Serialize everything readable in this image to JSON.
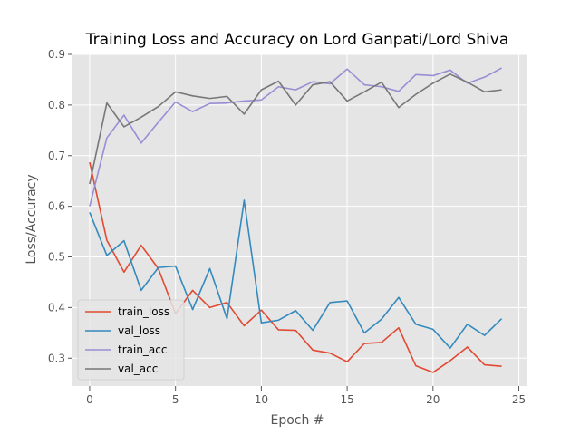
{
  "chart_data": {
    "type": "line",
    "title": "Training Loss and Accuracy on Lord Ganpati/Lord Shiva",
    "xlabel": "Epoch #",
    "ylabel": "Loss/Accuracy",
    "xlim": [
      -1,
      25.5
    ],
    "ylim": [
      0.245,
      0.9
    ],
    "xticks": [
      0,
      5,
      10,
      15,
      20,
      25
    ],
    "yticks": [
      0.3,
      0.4,
      0.5,
      0.6,
      0.7,
      0.8,
      0.9
    ],
    "grid": true,
    "legend_position": "lower-left",
    "x": [
      0,
      1,
      2,
      3,
      4,
      5,
      6,
      7,
      8,
      9,
      10,
      11,
      12,
      13,
      14,
      15,
      16,
      17,
      18,
      19,
      20,
      21,
      22,
      23,
      24
    ],
    "series": [
      {
        "name": "train_loss",
        "color": "#E24A33",
        "values": [
          0.687,
          0.533,
          0.47,
          0.523,
          0.477,
          0.388,
          0.434,
          0.4,
          0.41,
          0.364,
          0.395,
          0.356,
          0.355,
          0.316,
          0.31,
          0.293,
          0.329,
          0.331,
          0.36,
          0.285,
          0.272,
          0.295,
          0.322,
          0.287,
          0.284
        ]
      },
      {
        "name": "val_loss",
        "color": "#348ABD",
        "values": [
          0.588,
          0.503,
          0.532,
          0.434,
          0.479,
          0.482,
          0.396,
          0.477,
          0.378,
          0.612,
          0.37,
          0.375,
          0.394,
          0.355,
          0.41,
          0.413,
          0.35,
          0.377,
          0.42,
          0.367,
          0.357,
          0.32,
          0.367,
          0.345,
          0.378
        ]
      },
      {
        "name": "train_acc",
        "color": "#988ED5",
        "values": [
          0.6,
          0.735,
          0.78,
          0.725,
          0.766,
          0.806,
          0.787,
          0.803,
          0.804,
          0.808,
          0.81,
          0.836,
          0.83,
          0.846,
          0.842,
          0.871,
          0.84,
          0.836,
          0.827,
          0.86,
          0.858,
          0.869,
          0.843,
          0.855,
          0.873
        ]
      },
      {
        "name": "val_acc",
        "color": "#777777",
        "values": [
          0.644,
          0.804,
          0.757,
          0.776,
          0.797,
          0.826,
          0.818,
          0.813,
          0.817,
          0.782,
          0.83,
          0.847,
          0.8,
          0.84,
          0.846,
          0.808,
          0.826,
          0.845,
          0.795,
          0.821,
          0.843,
          0.861,
          0.845,
          0.826,
          0.83
        ]
      }
    ]
  }
}
